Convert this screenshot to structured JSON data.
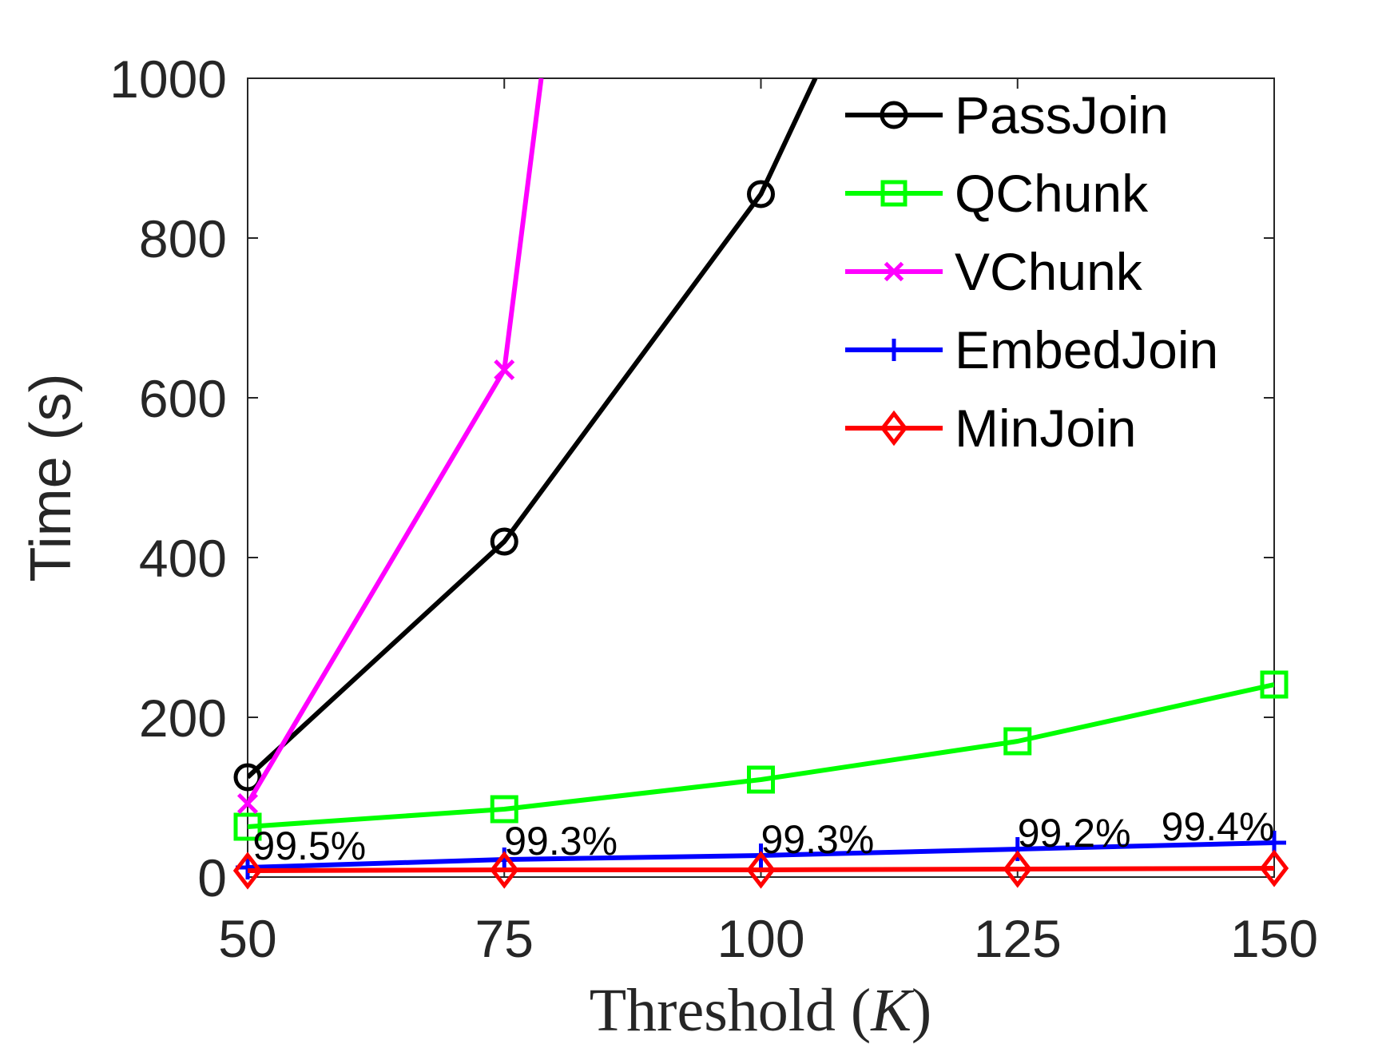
{
  "chart_data": {
    "type": "line",
    "title": "",
    "xlabel": "Threshold (K)",
    "xlabel_parts": {
      "text": "Threshold ",
      "open": "(",
      "var": "K",
      "close": ")"
    },
    "ylabel": "Time (s)",
    "x": [
      50,
      75,
      100,
      125,
      150
    ],
    "xticks": [
      "50",
      "75",
      "100",
      "125",
      "150"
    ],
    "yticks": [
      "0",
      "200",
      "400",
      "600",
      "800",
      "1000"
    ],
    "xlim": [
      50,
      150
    ],
    "ylim": [
      0,
      1000
    ],
    "grid": false,
    "legend_position": "top-right",
    "series": [
      {
        "name": "PassJoin",
        "color": "#000000",
        "marker": "circle",
        "x": [
          50,
          75,
          100,
          105.3
        ],
        "values": [
          125,
          420,
          855,
          1000
        ]
      },
      {
        "name": "QChunk",
        "color": "#00ff00",
        "marker": "square",
        "x": [
          50,
          75,
          100,
          125,
          150
        ],
        "values": [
          63,
          85,
          122,
          170,
          241
        ]
      },
      {
        "name": "VChunk",
        "color": "#ff00ff",
        "marker": "x",
        "x": [
          50,
          75,
          78.6
        ],
        "values": [
          92,
          635,
          1000
        ]
      },
      {
        "name": "EmbedJoin",
        "color": "#0000ff",
        "marker": "plus",
        "x": [
          50,
          75,
          100,
          125,
          150
        ],
        "values": [
          12,
          22,
          27,
          35,
          43
        ]
      },
      {
        "name": "MinJoin",
        "color": "#ff0000",
        "marker": "diamond",
        "x": [
          50,
          75,
          100,
          125,
          150
        ],
        "values": [
          8,
          9,
          9,
          10,
          11
        ]
      }
    ],
    "annotations": [
      {
        "text": "99.5%",
        "x": 50.5,
        "y": 22
      },
      {
        "text": "99.3%",
        "x": 75,
        "y": 28
      },
      {
        "text": "99.3%",
        "x": 100,
        "y": 30
      },
      {
        "text": "99.2%",
        "x": 125,
        "y": 38
      },
      {
        "text": "99.4%",
        "x": 139,
        "y": 46
      }
    ]
  }
}
